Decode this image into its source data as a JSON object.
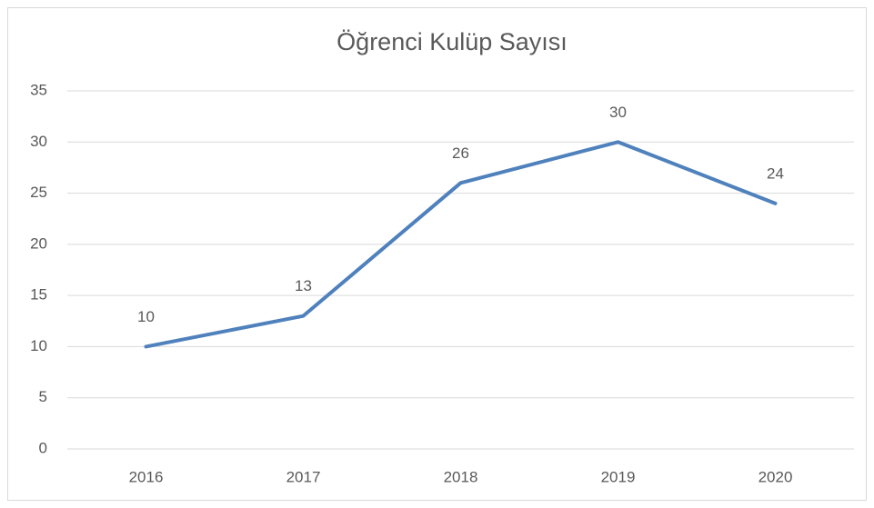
{
  "chart_data": {
    "type": "line",
    "title": "Öğrenci Kulüp Sayısı",
    "categories": [
      "2016",
      "2017",
      "2018",
      "2019",
      "2020"
    ],
    "series": [
      {
        "name": "Öğrenci Kulüp Sayısı",
        "color": "#4f81bd",
        "values": [
          10,
          13,
          26,
          30,
          24
        ]
      }
    ],
    "ylim": [
      0,
      35
    ],
    "yticks": [
      0,
      5,
      10,
      15,
      20,
      25,
      30,
      35
    ],
    "grid": true,
    "data_labels": true
  }
}
